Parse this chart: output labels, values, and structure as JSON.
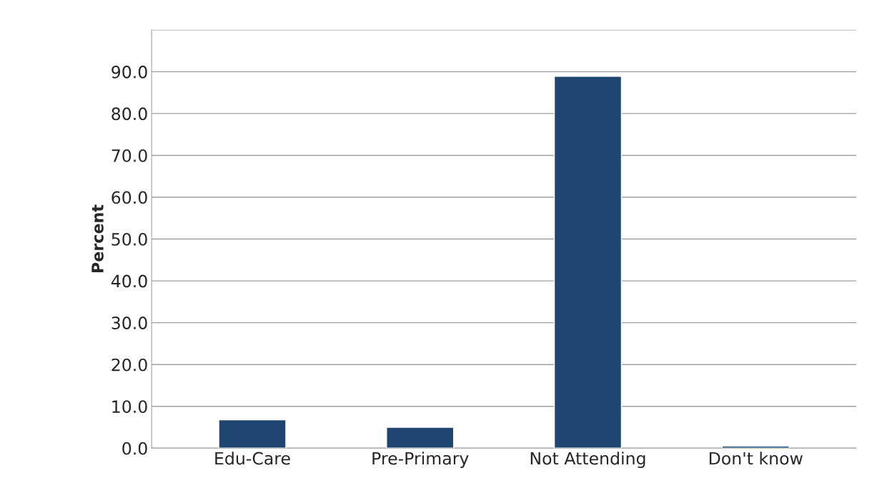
{
  "chart_data": {
    "type": "bar",
    "ylabel": "Percent",
    "categories": [
      "Edu-Care",
      "Pre-Primary",
      "Not Attending",
      "Don't know"
    ],
    "values": [
      6.8,
      5.0,
      88.9,
      0.5
    ],
    "color": "#1f4671",
    "ylim": [
      0,
      100
    ],
    "yticks": [
      {
        "value": 0,
        "label": "0.0"
      },
      {
        "value": 10,
        "label": "10.0"
      },
      {
        "value": 20,
        "label": "20.0"
      },
      {
        "value": 30,
        "label": "30.0"
      },
      {
        "value": 40,
        "label": "40.0"
      },
      {
        "value": 50,
        "label": "50.0"
      },
      {
        "value": 60,
        "label": "60.0"
      },
      {
        "value": 70,
        "label": "70.0"
      },
      {
        "value": 80,
        "label": "80.0"
      },
      {
        "value": 90,
        "label": "90.0"
      },
      {
        "value": 100,
        "label": null
      }
    ],
    "grid": "y"
  }
}
